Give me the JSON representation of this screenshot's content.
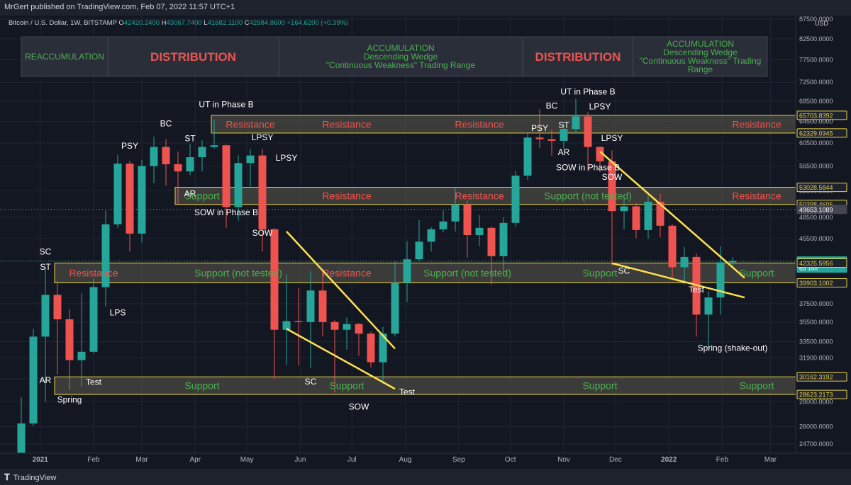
{
  "publisher": "MrGert published on TradingView.com, Feb 07, 2022 11:57 UTC+1",
  "brand": "TradingView",
  "colors": {
    "background": "#131722",
    "up": "#26a69a",
    "down": "#ef5350",
    "zone_fill": "#4a4a42",
    "zone_border": "#e6d24a",
    "trendline": "#ffe14d",
    "resistance_text": "#ef5350",
    "support_text": "#4caf50",
    "label_text": "#ffffff",
    "accumulation_text": "#4caf50",
    "distribution_text": "#ef5350"
  },
  "symbol": {
    "title": "Bitcoin / U.S. Dollar, 1W, BITSTAMP",
    "o_label": "O",
    "o": "42420.2400",
    "h_label": "H",
    "h": "43067.7400",
    "l_label": "L",
    "l": "41682.1100",
    "c_label": "C",
    "c": "42584.8600",
    "change": "+164.6200 (+0.39%)"
  },
  "phase_boxes": [
    {
      "lines": [
        "REACCUMULATION"
      ],
      "kind": "accumulation"
    },
    {
      "lines": [
        "DISTRIBUTION"
      ],
      "kind": "distribution"
    },
    {
      "lines": [
        "ACCUMULATION",
        "Descending Wedge",
        "\"Continuous Weakness\" Trading Range"
      ],
      "kind": "accumulation"
    },
    {
      "lines": [
        "DISTRIBUTION"
      ],
      "kind": "distribution"
    },
    {
      "lines": [
        "ACCUMULATION",
        "Descending Wedge",
        "\"Continuous Weakness\" Trading",
        "Range"
      ],
      "kind": "accumulation"
    }
  ],
  "chart_data": {
    "type": "candlestick",
    "timeframe": "1W",
    "currency": "USD",
    "y_scale": "log",
    "ylim": [
      23700,
      87500
    ],
    "x_ticks": [
      "2021",
      "Feb",
      "Mar",
      "Apr",
      "May",
      "Jun",
      "Jul",
      "Aug",
      "Sep",
      "Oct",
      "Nov",
      "Dec",
      "2022",
      "Feb",
      "Mar"
    ],
    "y_ticks": [
      "87500.0000",
      "82500.0000",
      "77500.0000",
      "72500.0000",
      "68500.0000",
      "64500.0000",
      "60500.0000",
      "56500.0000",
      "52500.0000",
      "48500.0000",
      "45500.0000",
      "42500.0000",
      "40000.0000",
      "37500.0000",
      "35500.0000",
      "33500.0000",
      "31900.0000",
      "30000.0000",
      "28000.0000",
      "26000.0000",
      "24700.0000"
    ],
    "price_badges": [
      {
        "value": "65703.8392",
        "kind": "zone"
      },
      {
        "value": "62329.0345",
        "kind": "zone"
      },
      {
        "value": "53028.5844",
        "kind": "zone"
      },
      {
        "value": "50398.4605",
        "kind": "zone"
      },
      {
        "value": "49653.1089",
        "kind": "neutral"
      },
      {
        "value": "42584.8600",
        "kind": "current",
        "sub": "6d 14h"
      },
      {
        "value": "42325.5956",
        "kind": "zone"
      },
      {
        "value": "39903.1002",
        "kind": "zone"
      },
      {
        "value": "30162.3192",
        "kind": "zone"
      },
      {
        "value": "28623.2173",
        "kind": "zone"
      }
    ],
    "candles": [
      {
        "date": "2020-12-21",
        "o": 23470,
        "h": 28400,
        "l": 22700,
        "c": 26250
      },
      {
        "date": "2020-12-28",
        "o": 26250,
        "h": 34800,
        "l": 26050,
        "c": 34000
      },
      {
        "date": "2021-01-04",
        "o": 34000,
        "h": 41900,
        "l": 28000,
        "c": 38500
      },
      {
        "date": "2021-01-11",
        "o": 38500,
        "h": 40100,
        "l": 30400,
        "c": 35800
      },
      {
        "date": "2021-01-18",
        "o": 35800,
        "h": 36900,
        "l": 29000,
        "c": 31700
      },
      {
        "date": "2021-01-25",
        "o": 31700,
        "h": 38700,
        "l": 29300,
        "c": 32500
      },
      {
        "date": "2021-02-01",
        "o": 32500,
        "h": 40500,
        "l": 32300,
        "c": 39400
      },
      {
        "date": "2021-02-08",
        "o": 39400,
        "h": 49500,
        "l": 37200,
        "c": 47500
      },
      {
        "date": "2021-02-15",
        "o": 47500,
        "h": 58400,
        "l": 47000,
        "c": 56900
      },
      {
        "date": "2021-02-22",
        "o": 56900,
        "h": 57400,
        "l": 43800,
        "c": 46200
      },
      {
        "date": "2021-03-01",
        "o": 46200,
        "h": 57500,
        "l": 45000,
        "c": 56500
      },
      {
        "date": "2021-03-08",
        "o": 56500,
        "h": 61700,
        "l": 53700,
        "c": 59800
      },
      {
        "date": "2021-03-15",
        "o": 59800,
        "h": 61200,
        "l": 53300,
        "c": 56800
      },
      {
        "date": "2021-03-22",
        "o": 56800,
        "h": 59000,
        "l": 50400,
        "c": 55600
      },
      {
        "date": "2021-03-29",
        "o": 55600,
        "h": 60300,
        "l": 55000,
        "c": 58000
      },
      {
        "date": "2021-04-05",
        "o": 58000,
        "h": 61000,
        "l": 55600,
        "c": 59800
      },
      {
        "date": "2021-04-12",
        "o": 59800,
        "h": 64850,
        "l": 59500,
        "c": 60100
      },
      {
        "date": "2021-04-19",
        "o": 60100,
        "h": 60200,
        "l": 47000,
        "c": 50000
      },
      {
        "date": "2021-04-26",
        "o": 50000,
        "h": 58400,
        "l": 48000,
        "c": 57000
      },
      {
        "date": "2021-05-03",
        "o": 57000,
        "h": 59500,
        "l": 53000,
        "c": 58300
      },
      {
        "date": "2021-05-10",
        "o": 58300,
        "h": 59500,
        "l": 43800,
        "c": 46800
      },
      {
        "date": "2021-05-17",
        "o": 46800,
        "h": 47000,
        "l": 30000,
        "c": 34700
      },
      {
        "date": "2021-05-24",
        "o": 34700,
        "h": 40900,
        "l": 31200,
        "c": 35600
      },
      {
        "date": "2021-05-31",
        "o": 35600,
        "h": 39300,
        "l": 31200,
        "c": 35500
      },
      {
        "date": "2021-06-07",
        "o": 35500,
        "h": 41300,
        "l": 31000,
        "c": 39000
      },
      {
        "date": "2021-06-14",
        "o": 39000,
        "h": 41300,
        "l": 34000,
        "c": 35500
      },
      {
        "date": "2021-06-21",
        "o": 35500,
        "h": 35700,
        "l": 28800,
        "c": 34700
      },
      {
        "date": "2021-06-28",
        "o": 34700,
        "h": 36000,
        "l": 32700,
        "c": 35300
      },
      {
        "date": "2021-07-05",
        "o": 35300,
        "h": 35400,
        "l": 32100,
        "c": 34300
      },
      {
        "date": "2021-07-12",
        "o": 34300,
        "h": 34500,
        "l": 31000,
        "c": 31500
      },
      {
        "date": "2021-07-19",
        "o": 31500,
        "h": 35000,
        "l": 29500,
        "c": 34300
      },
      {
        "date": "2021-07-26",
        "o": 34300,
        "h": 42500,
        "l": 34000,
        "c": 39900
      },
      {
        "date": "2021-08-02",
        "o": 39900,
        "h": 45200,
        "l": 37700,
        "c": 42800
      },
      {
        "date": "2021-08-09",
        "o": 42800,
        "h": 48100,
        "l": 42600,
        "c": 45100
      },
      {
        "date": "2021-08-16",
        "o": 45100,
        "h": 47100,
        "l": 43800,
        "c": 46800
      },
      {
        "date": "2021-08-23",
        "o": 46800,
        "h": 49500,
        "l": 46400,
        "c": 47900
      },
      {
        "date": "2021-08-30",
        "o": 47900,
        "h": 52900,
        "l": 46500,
        "c": 50400
      },
      {
        "date": "2021-09-06",
        "o": 50400,
        "h": 51000,
        "l": 43000,
        "c": 46000
      },
      {
        "date": "2021-09-13",
        "o": 46000,
        "h": 48800,
        "l": 44500,
        "c": 47000
      },
      {
        "date": "2021-09-20",
        "o": 47000,
        "h": 47200,
        "l": 39700,
        "c": 43200
      },
      {
        "date": "2021-09-27",
        "o": 43200,
        "h": 48500,
        "l": 40900,
        "c": 47700
      },
      {
        "date": "2021-10-04",
        "o": 47700,
        "h": 55700,
        "l": 47100,
        "c": 54900
      },
      {
        "date": "2021-10-11",
        "o": 54900,
        "h": 62500,
        "l": 54200,
        "c": 61500
      },
      {
        "date": "2021-10-18",
        "o": 61500,
        "h": 66900,
        "l": 59600,
        "c": 61200
      },
      {
        "date": "2021-10-25",
        "o": 61200,
        "h": 62900,
        "l": 58300,
        "c": 60900
      },
      {
        "date": "2021-11-01",
        "o": 60900,
        "h": 64300,
        "l": 59500,
        "c": 63100
      },
      {
        "date": "2021-11-08",
        "o": 63100,
        "h": 69000,
        "l": 62300,
        "c": 65500
      },
      {
        "date": "2021-11-15",
        "o": 65500,
        "h": 66300,
        "l": 55700,
        "c": 59800
      },
      {
        "date": "2021-11-22",
        "o": 59800,
        "h": 59900,
        "l": 55500,
        "c": 57300
      },
      {
        "date": "2021-11-29",
        "o": 57300,
        "h": 59200,
        "l": 42000,
        "c": 49400
      },
      {
        "date": "2021-12-06",
        "o": 49400,
        "h": 51900,
        "l": 46800,
        "c": 50100
      },
      {
        "date": "2021-12-13",
        "o": 50100,
        "h": 50600,
        "l": 45600,
        "c": 46700
      },
      {
        "date": "2021-12-20",
        "o": 46700,
        "h": 51800,
        "l": 45500,
        "c": 50800
      },
      {
        "date": "2021-12-27",
        "o": 50800,
        "h": 52000,
        "l": 45700,
        "c": 47300
      },
      {
        "date": "2022-01-03",
        "o": 47300,
        "h": 47500,
        "l": 40600,
        "c": 41800
      },
      {
        "date": "2022-01-10",
        "o": 41800,
        "h": 44400,
        "l": 39700,
        "c": 43100
      },
      {
        "date": "2022-01-17",
        "o": 43100,
        "h": 43500,
        "l": 34000,
        "c": 36300
      },
      {
        "date": "2022-01-24",
        "o": 36300,
        "h": 38900,
        "l": 32900,
        "c": 38200
      },
      {
        "date": "2022-01-31",
        "o": 38200,
        "h": 44500,
        "l": 36300,
        "c": 42420
      },
      {
        "date": "2022-02-07",
        "o": 42420,
        "h": 43068,
        "l": 41682,
        "c": 42585
      }
    ],
    "zones": [
      {
        "low": 62329.0345,
        "high": 65703.8392,
        "start": "2021-04-12",
        "labels": [
          "Resistance",
          "Resistance",
          "Resistance",
          "Resistance"
        ]
      },
      {
        "low": 50398.4605,
        "high": 53028.5844,
        "start": "2021-03-22",
        "labels": [
          "Support",
          "Resistance",
          "Resistance",
          "Support (not tested)",
          "Resistance"
        ]
      },
      {
        "low": 39903.1002,
        "high": 42325.5956,
        "start": "2021-01-11",
        "labels": [
          "Resistance",
          "Support (not tested)",
          "Resistance",
          "Support (not tested)",
          "Support",
          "Support"
        ]
      },
      {
        "low": 28623.2173,
        "high": 30162.3192,
        "start": "2021-01-11",
        "labels": [
          "Support",
          "Support",
          "Support",
          "Support"
        ]
      }
    ],
    "zone_label_dates": [
      [
        "2021-05-03",
        "2021-06-28",
        "2021-09-13",
        "2022-02-21"
      ],
      [
        "2021-04-05",
        "2021-06-28",
        "2021-09-13",
        "2021-11-15",
        "2022-02-21"
      ],
      [
        "2021-02-01",
        "2021-04-26",
        "2021-06-28",
        "2021-09-06",
        "2021-11-22",
        "2022-02-21"
      ],
      [
        "2021-04-05",
        "2021-06-28",
        "2021-11-22",
        "2022-02-21"
      ]
    ],
    "trendlines": [
      {
        "from": {
          "date": "2021-05-24",
          "price": 46500
        },
        "to": {
          "date": "2021-07-26",
          "price": 32800
        }
      },
      {
        "from": {
          "date": "2021-05-24",
          "price": 34800
        },
        "to": {
          "date": "2021-07-26",
          "price": 29100
        }
      },
      {
        "from": {
          "date": "2021-11-22",
          "price": 59000
        },
        "to": {
          "date": "2022-02-14",
          "price": 40500
        }
      },
      {
        "from": {
          "date": "2021-11-29",
          "price": 42300
        },
        "to": {
          "date": "2022-02-14",
          "price": 38200
        }
      }
    ],
    "dotted_lines": [
      {
        "price": 49653.1089
      }
    ],
    "annotations": [
      {
        "text": "SC",
        "date": "2021-01-04",
        "price": 43400
      },
      {
        "text": "ST",
        "date": "2021-01-04",
        "price": 41500
      },
      {
        "text": "AR",
        "date": "2021-01-04",
        "price": 29600
      },
      {
        "text": "Spring",
        "date": "2021-01-18",
        "price": 27950
      },
      {
        "text": "Test",
        "date": "2021-02-01",
        "price": 29450
      },
      {
        "text": "LPS",
        "date": "2021-02-15",
        "price": 36200
      },
      {
        "text": "PSY",
        "date": "2021-02-22",
        "price": 59500
      },
      {
        "text": "BC",
        "date": "2021-03-15",
        "price": 63600
      },
      {
        "text": "ST",
        "date": "2021-03-29",
        "price": 60800
      },
      {
        "text": "UT in Phase B",
        "date": "2021-04-19",
        "price": 67300
      },
      {
        "text": "AR",
        "date": "2021-03-29",
        "price": 51600
      },
      {
        "text": "SOW in Phase B",
        "date": "2021-04-19",
        "price": 48800
      },
      {
        "text": "LPSY",
        "date": "2021-05-10",
        "price": 61000
      },
      {
        "text": "LPSY",
        "date": "2021-05-24",
        "price": 57400
      },
      {
        "text": "SOW",
        "date": "2021-05-10",
        "price": 45900
      },
      {
        "text": "SC",
        "date": "2021-06-07",
        "price": 29500
      },
      {
        "text": "SOW",
        "date": "2021-07-05",
        "price": 27350
      },
      {
        "text": "Test",
        "date": "2021-08-02",
        "price": 28600
      },
      {
        "text": "PSY",
        "date": "2021-10-18",
        "price": 62700
      },
      {
        "text": "BC",
        "date": "2021-10-25",
        "price": 67000
      },
      {
        "text": "UT in Phase B",
        "date": "2021-11-15",
        "price": 69900
      },
      {
        "text": "ST",
        "date": "2021-11-01",
        "price": 63300
      },
      {
        "text": "LPSY",
        "date": "2021-11-22",
        "price": 66900
      },
      {
        "text": "AR",
        "date": "2021-11-01",
        "price": 58400
      },
      {
        "text": "LPSY",
        "date": "2021-11-29",
        "price": 60900
      },
      {
        "text": "SOW in Phase B",
        "date": "2021-11-15",
        "price": 55800
      },
      {
        "text": "SOW",
        "date": "2021-11-29",
        "price": 54200
      },
      {
        "text": "SC",
        "date": "2021-12-06",
        "price": 41000
      },
      {
        "text": "Test",
        "date": "2022-01-17",
        "price": 38800
      },
      {
        "text": "Spring (shake-out)",
        "date": "2022-02-07",
        "price": 32600
      }
    ]
  }
}
